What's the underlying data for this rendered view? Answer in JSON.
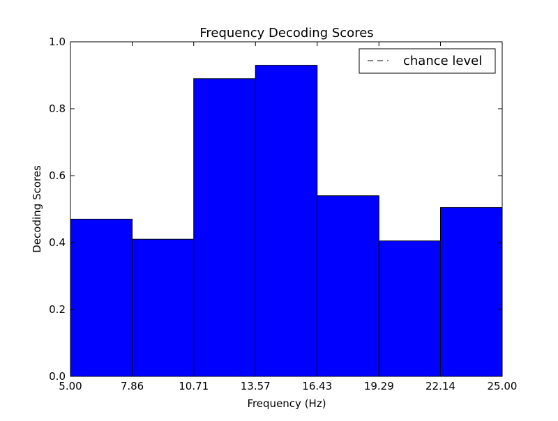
{
  "chart_data": {
    "type": "bar",
    "title": "Frequency Decoding Scores",
    "xlabel": "Frequency (Hz)",
    "ylabel": "Decoding Scores",
    "xlim": [
      5.0,
      25.0
    ],
    "ylim": [
      0.0,
      1.0
    ],
    "x_ticks": [
      "5.00",
      "7.86",
      "10.71",
      "13.57",
      "16.43",
      "19.29",
      "22.14",
      "25.00"
    ],
    "y_ticks": [
      "0.0",
      "0.2",
      "0.4",
      "0.6",
      "0.8",
      "1.0"
    ],
    "bin_edges": [
      5.0,
      7.86,
      10.71,
      13.57,
      16.43,
      19.29,
      22.14,
      25.0
    ],
    "values": [
      0.47,
      0.41,
      0.89,
      0.93,
      0.54,
      0.405,
      0.505
    ],
    "bar_color": "#0000ff",
    "edge_color": "#000000",
    "grid": false,
    "legend": {
      "placement": "top-right",
      "entries": [
        {
          "label": "chance level",
          "style": "dashed",
          "color": "#000000"
        }
      ]
    }
  }
}
